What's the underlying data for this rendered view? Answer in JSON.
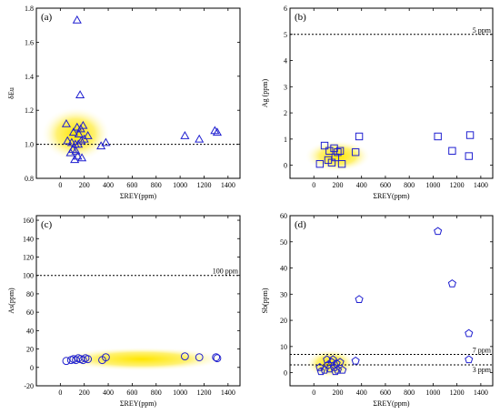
{
  "colors": {
    "marker": "#1f1fd0",
    "glow_center": "#ffe600",
    "glow_edge": "#ffffff"
  },
  "chart_data": [
    {
      "type": "scatter",
      "panel_label": "(a)",
      "xlabel": "ΣREY(ppm)",
      "ylabel": "δEu",
      "xlim": [
        -200,
        1500
      ],
      "ylim": [
        0.8,
        1.8
      ],
      "xticks": [
        "0",
        "200",
        "400",
        "600",
        "800",
        "1000",
        "1200",
        "1400"
      ],
      "yticks": [
        "0.8",
        "1.0",
        "1.2",
        "1.4",
        "1.6",
        "1.8"
      ],
      "marker": "triangle",
      "reference_lines": [
        {
          "y": 1.0,
          "label": ""
        }
      ],
      "highlight": {
        "cx": 130,
        "cy": 1.06,
        "rx": 290,
        "ry": 0.16
      },
      "points": [
        {
          "x": 140,
          "y": 1.73
        },
        {
          "x": 165,
          "y": 1.29
        },
        {
          "x": 50,
          "y": 1.12
        },
        {
          "x": 140,
          "y": 1.1
        },
        {
          "x": 170,
          "y": 1.09
        },
        {
          "x": 190,
          "y": 1.11
        },
        {
          "x": 110,
          "y": 1.07
        },
        {
          "x": 155,
          "y": 1.06
        },
        {
          "x": 230,
          "y": 1.05
        },
        {
          "x": 60,
          "y": 1.02
        },
        {
          "x": 95,
          "y": 1.01
        },
        {
          "x": 125,
          "y": 1.0
        },
        {
          "x": 150,
          "y": 1.0
        },
        {
          "x": 175,
          "y": 1.02
        },
        {
          "x": 200,
          "y": 1.03
        },
        {
          "x": 105,
          "y": 0.97
        },
        {
          "x": 130,
          "y": 0.96
        },
        {
          "x": 85,
          "y": 0.95
        },
        {
          "x": 145,
          "y": 0.93
        },
        {
          "x": 120,
          "y": 0.91
        },
        {
          "x": 180,
          "y": 0.92
        },
        {
          "x": 340,
          "y": 0.99
        },
        {
          "x": 380,
          "y": 1.01
        },
        {
          "x": 1040,
          "y": 1.05
        },
        {
          "x": 1160,
          "y": 1.03
        },
        {
          "x": 1290,
          "y": 1.08
        },
        {
          "x": 1310,
          "y": 1.07
        }
      ]
    },
    {
      "type": "scatter",
      "panel_label": "(b)",
      "xlabel": "ΣREY(ppm)",
      "ylabel": "Ag (ppm)",
      "xlim": [
        -200,
        1500
      ],
      "ylim": [
        -0.5,
        6
      ],
      "xticks": [
        "0",
        "200",
        "400",
        "600",
        "800",
        "1000",
        "1200",
        "1400"
      ],
      "yticks": [
        "0",
        "1",
        "2",
        "3",
        "4",
        "5",
        "6"
      ],
      "marker": "square",
      "reference_lines": [
        {
          "y": 5,
          "label": "5 ppm"
        }
      ],
      "highlight": {
        "cx": 200,
        "cy": 0.35,
        "rx": 280,
        "ry": 0.6
      },
      "points": [
        {
          "x": 50,
          "y": 0.05
        },
        {
          "x": 90,
          "y": 0.75
        },
        {
          "x": 120,
          "y": 0.2
        },
        {
          "x": 130,
          "y": 0.55
        },
        {
          "x": 150,
          "y": 0.1
        },
        {
          "x": 170,
          "y": 0.65
        },
        {
          "x": 180,
          "y": 0.3
        },
        {
          "x": 200,
          "y": 0.5
        },
        {
          "x": 220,
          "y": 0.55
        },
        {
          "x": 235,
          "y": 0.05
        },
        {
          "x": 350,
          "y": 0.5
        },
        {
          "x": 380,
          "y": 1.1
        },
        {
          "x": 1040,
          "y": 1.1
        },
        {
          "x": 1160,
          "y": 0.55
        },
        {
          "x": 1300,
          "y": 0.35
        },
        {
          "x": 1310,
          "y": 1.15
        }
      ]
    },
    {
      "type": "scatter",
      "panel_label": "(c)",
      "xlabel": "ΣREY(ppm)",
      "ylabel": "As(ppm)",
      "xlim": [
        -200,
        1500
      ],
      "ylim": [
        -20,
        165
      ],
      "xticks": [
        "0",
        "200",
        "400",
        "600",
        "800",
        "1000",
        "1200",
        "1400"
      ],
      "yticks": [
        "-20",
        "0",
        "20",
        "40",
        "60",
        "80",
        "100",
        "120",
        "140",
        "160"
      ],
      "marker": "circle",
      "reference_lines": [
        {
          "y": 100,
          "label": "100 ppm"
        }
      ],
      "highlight": {
        "cx": 680,
        "cy": 9,
        "rx": 720,
        "ry": 13
      },
      "points": [
        {
          "x": 50,
          "y": 7
        },
        {
          "x": 90,
          "y": 8
        },
        {
          "x": 110,
          "y": 9
        },
        {
          "x": 130,
          "y": 8
        },
        {
          "x": 150,
          "y": 10
        },
        {
          "x": 170,
          "y": 9
        },
        {
          "x": 190,
          "y": 8
        },
        {
          "x": 210,
          "y": 10
        },
        {
          "x": 230,
          "y": 9
        },
        {
          "x": 350,
          "y": 8
        },
        {
          "x": 380,
          "y": 11
        },
        {
          "x": 1040,
          "y": 12
        },
        {
          "x": 1160,
          "y": 11
        },
        {
          "x": 1300,
          "y": 11
        },
        {
          "x": 1310,
          "y": 10
        }
      ]
    },
    {
      "type": "scatter",
      "panel_label": "(d)",
      "xlabel": "ΣREY(ppm)",
      "ylabel": "Sb(ppm)",
      "xlim": [
        -200,
        1500
      ],
      "ylim": [
        -5,
        60
      ],
      "xticks": [
        "0",
        "200",
        "400",
        "600",
        "800",
        "1000",
        "1200",
        "1400"
      ],
      "yticks": [
        "0",
        "10",
        "20",
        "30",
        "40",
        "50",
        "60"
      ],
      "marker": "pentagon",
      "reference_lines": [
        {
          "y": 7,
          "label": "7 ppm"
        },
        {
          "y": 3,
          "label": "3 ppm"
        }
      ],
      "highlight": {
        "cx": 140,
        "cy": 3.5,
        "rx": 210,
        "ry": 5.5
      },
      "points": [
        {
          "x": 50,
          "y": 2
        },
        {
          "x": 60,
          "y": 0.5
        },
        {
          "x": 90,
          "y": 1
        },
        {
          "x": 110,
          "y": 5
        },
        {
          "x": 120,
          "y": 3
        },
        {
          "x": 130,
          "y": 1.5
        },
        {
          "x": 150,
          "y": 4
        },
        {
          "x": 160,
          "y": 5
        },
        {
          "x": 170,
          "y": 2
        },
        {
          "x": 180,
          "y": 0.5
        },
        {
          "x": 190,
          "y": 3.5
        },
        {
          "x": 200,
          "y": 1
        },
        {
          "x": 220,
          "y": 4
        },
        {
          "x": 240,
          "y": 1
        },
        {
          "x": 350,
          "y": 4.5
        },
        {
          "x": 380,
          "y": 28
        },
        {
          "x": 1040,
          "y": 54
        },
        {
          "x": 1160,
          "y": 34
        },
        {
          "x": 1300,
          "y": 15
        },
        {
          "x": 1300,
          "y": 5
        }
      ]
    }
  ]
}
